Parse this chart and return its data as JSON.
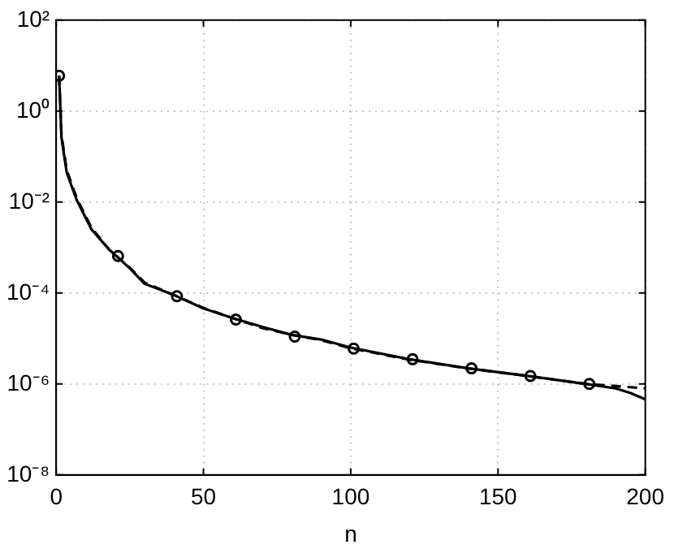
{
  "chart_data": {
    "type": "line",
    "xlabel": "n",
    "log": "y",
    "grid": true,
    "legend": false,
    "xlim": [
      0,
      200
    ],
    "xticks": [
      0,
      50,
      100,
      150,
      200
    ],
    "ylim": [
      1e-08,
      100
    ],
    "yticks": [
      {
        "value": 1e-08,
        "label": "10⁻⁸"
      },
      {
        "value": 1e-06,
        "label": "10⁻⁶"
      },
      {
        "value": 0.0001,
        "label": "10⁻⁴"
      },
      {
        "value": 0.01,
        "label": "10⁻²"
      },
      {
        "value": 1,
        "label": "10⁰"
      },
      {
        "value": 100,
        "label": "10²"
      }
    ],
    "series": [
      {
        "type": "line",
        "color": "#000000",
        "line_style": "dashed",
        "marker": "none",
        "x": [
          1,
          1.8,
          3.6,
          7,
          12,
          18,
          25,
          30,
          40,
          50,
          60,
          70,
          80,
          90,
          100,
          120,
          140,
          160,
          180,
          190,
          200
        ],
        "values": [
          6,
          0.3,
          0.05,
          0.012,
          0.0027,
          0.0009,
          0.00036,
          0.00017,
          9e-05,
          4.7e-05,
          2.8e-05,
          1.7e-05,
          1.2e-05,
          9.2e-06,
          6.1e-06,
          3.4e-06,
          2.2e-06,
          1.5e-06,
          1e-06,
          9e-07,
          8e-07
        ]
      },
      {
        "type": "line",
        "color": "#000000",
        "line_style": "solid",
        "marker": "none",
        "x": [
          1,
          1.8,
          3.6,
          7,
          12,
          18,
          25,
          30,
          40,
          50,
          60,
          70,
          80,
          90,
          100,
          120,
          140,
          160,
          180,
          190,
          195,
          200
        ],
        "values": [
          6,
          0.26,
          0.044,
          0.011,
          0.0025,
          0.0009,
          0.00035,
          0.00016,
          9e-05,
          4.6e-05,
          2.8e-05,
          1.8e-05,
          1.2e-05,
          9.5e-06,
          6.3e-06,
          3.5e-06,
          2.2e-06,
          1.5e-06,
          1e-06,
          8e-07,
          6.3e-07,
          4.6e-07
        ]
      },
      {
        "type": "scatter",
        "color": "#000000",
        "marker": "circle",
        "x": [
          1,
          21,
          41,
          61,
          81,
          101,
          121,
          141,
          161,
          181
        ],
        "values": [
          6,
          0.00065,
          8.5e-05,
          2.6e-05,
          1.1e-05,
          6e-06,
          3.5e-06,
          2.2e-06,
          1.5e-06,
          1e-06
        ]
      }
    ]
  }
}
